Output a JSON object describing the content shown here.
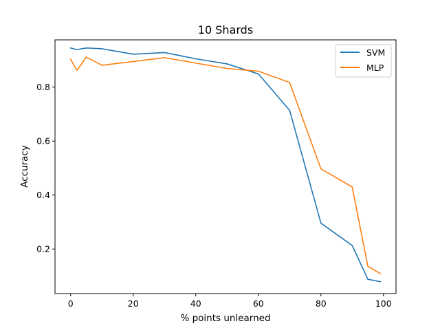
{
  "chart_data": {
    "type": "line",
    "title": "10 Shards",
    "xlabel": "% points unlearned",
    "ylabel": "Accuracy",
    "xlim": [
      -5,
      104
    ],
    "ylim": [
      0.035,
      0.975
    ],
    "xticks": [
      0,
      20,
      40,
      60,
      80,
      100
    ],
    "yticks": [
      0.2,
      0.4,
      0.6,
      0.8
    ],
    "xtick_labels": [
      "0",
      "20",
      "40",
      "60",
      "80",
      "100"
    ],
    "ytick_labels": [
      "0.2",
      "0.4",
      "0.6",
      "0.8"
    ],
    "grid": false,
    "legend_position": "top-right",
    "series": [
      {
        "name": "SVM",
        "color": "#1f77b4",
        "x": [
          0,
          2,
          5,
          10,
          20,
          30,
          40,
          50,
          60,
          70,
          80,
          90,
          95,
          99
        ],
        "y": [
          0.945,
          0.939,
          0.945,
          0.942,
          0.922,
          0.928,
          0.905,
          0.886,
          0.849,
          0.714,
          0.296,
          0.213,
          0.088,
          0.079
        ]
      },
      {
        "name": "MLP",
        "color": "#ff7f0e",
        "x": [
          0,
          2,
          5,
          10,
          20,
          30,
          40,
          50,
          60,
          70,
          80,
          90,
          95,
          99
        ],
        "y": [
          0.903,
          0.862,
          0.911,
          0.881,
          0.895,
          0.909,
          0.889,
          0.869,
          0.859,
          0.817,
          0.497,
          0.43,
          0.136,
          0.109
        ]
      }
    ]
  }
}
